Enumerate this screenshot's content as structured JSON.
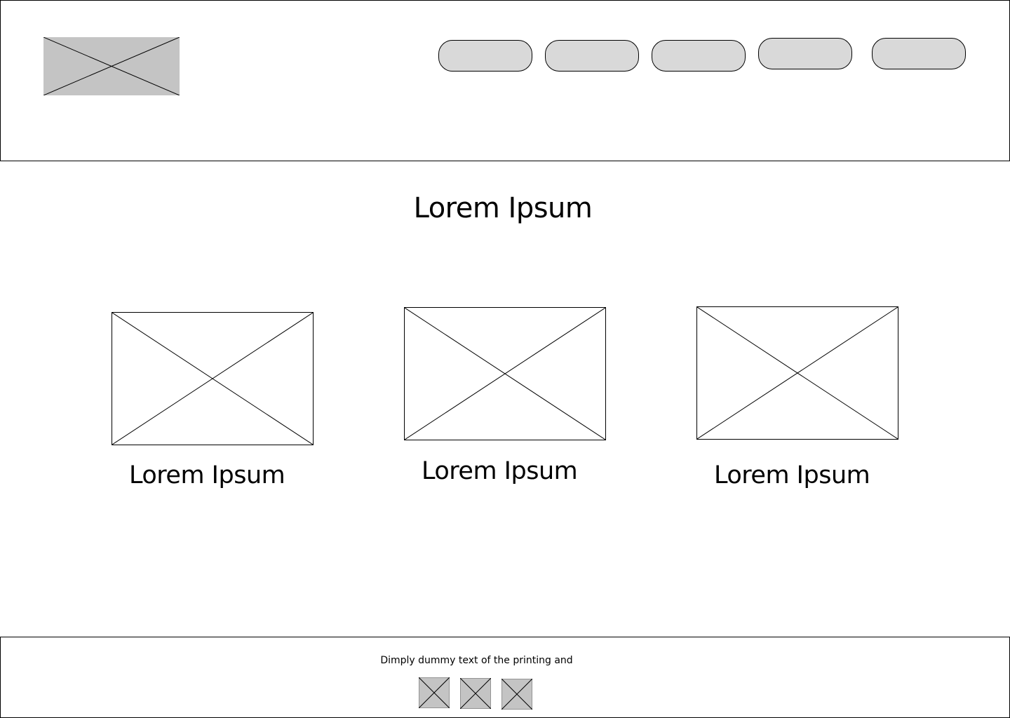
{
  "header": {
    "logo": {
      "icon": "image-placeholder-icon",
      "fill": "#c4c4c4"
    },
    "nav": {
      "button_fill": "#d9d9d9",
      "items": [
        {
          "label": ""
        },
        {
          "label": ""
        },
        {
          "label": ""
        },
        {
          "label": ""
        },
        {
          "label": ""
        }
      ]
    }
  },
  "main": {
    "title": "Lorem Ipsum",
    "cards": [
      {
        "image_icon": "image-placeholder-icon",
        "label": "Lorem Ipsum"
      },
      {
        "image_icon": "image-placeholder-icon",
        "label": "Lorem Ipsum"
      },
      {
        "image_icon": "image-placeholder-icon",
        "label": "Lorem Ipsum"
      }
    ]
  },
  "footer": {
    "text": "Dimply dummy text of the printing and",
    "social_icons": [
      {
        "icon": "image-placeholder-icon",
        "fill": "#c4c4c4"
      },
      {
        "icon": "image-placeholder-icon",
        "fill": "#c4c4c4"
      },
      {
        "icon": "image-placeholder-icon",
        "fill": "#c4c4c4"
      }
    ]
  }
}
